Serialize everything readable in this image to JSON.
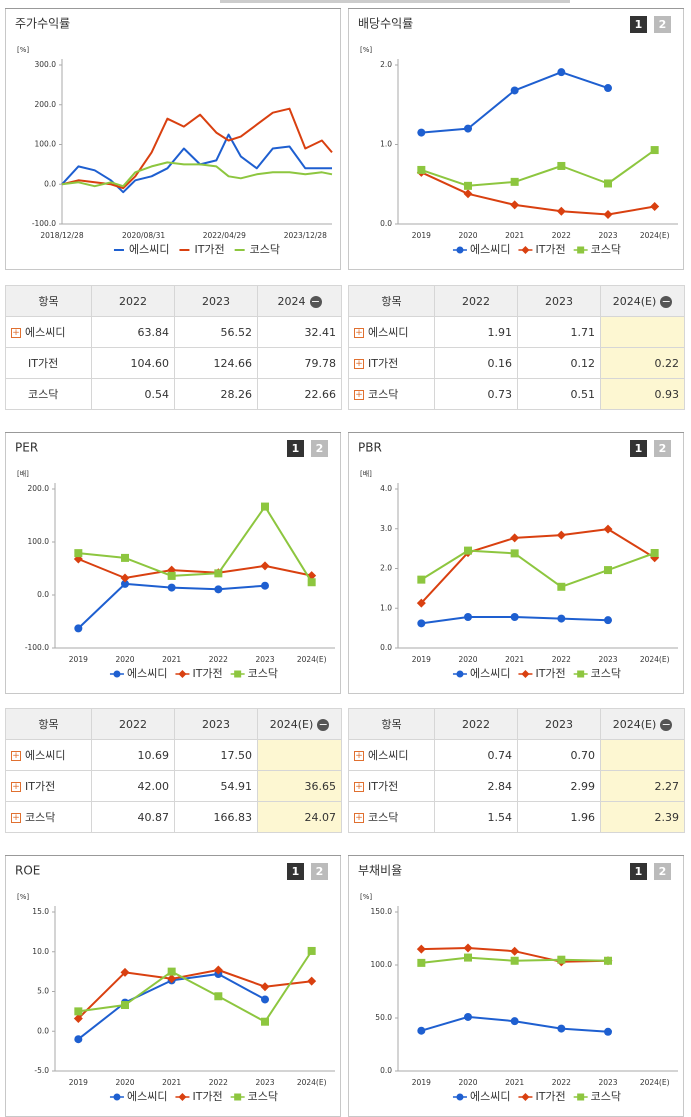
{
  "chart_data": [
    {
      "type": "line",
      "title": "주가수익률",
      "unit": "[%]",
      "x": [
        "2018/12/28",
        "2019/04/30",
        "2019/08/30",
        "2019/12/30",
        "2020/03/31",
        "2020/06/30",
        "2020/10/30",
        "2021/02/26",
        "2021/06/30",
        "2021/10/29",
        "2022/02/28",
        "2022/05/31",
        "2022/08/31",
        "2022/12/29",
        "2023/04/28",
        "2023/08/31",
        "2023/12/28",
        "2024/04/30",
        "2024/07/15"
      ],
      "xlim": [
        "2018/12/28",
        "2024/07/15"
      ],
      "xticks": [
        "2018/12/28",
        "2020/08/31",
        "2022/04/29",
        "2023/12/28"
      ],
      "ylim": [
        -100,
        300
      ],
      "yticks": [
        {
          "value": -100,
          "label": "-100.0"
        },
        {
          "value": 0,
          "label": "0.0"
        },
        {
          "value": 100,
          "label": "100.0"
        },
        {
          "value": 200,
          "label": "200.0"
        },
        {
          "value": 300,
          "label": "300.0"
        }
      ],
      "grid": false,
      "legend": "bottom",
      "series": [
        {
          "name": "에스씨디",
          "color": "#1e5fd0",
          "marker": "line",
          "values": [
            0,
            45,
            35,
            10,
            -20,
            10,
            20,
            40,
            90,
            50,
            60,
            125,
            70,
            40,
            90,
            95,
            40,
            40,
            40
          ]
        },
        {
          "name": "IT가전",
          "color": "#d94010",
          "marker": "line",
          "values": [
            0,
            10,
            5,
            0,
            -10,
            20,
            80,
            165,
            145,
            175,
            130,
            110,
            120,
            150,
            180,
            190,
            90,
            110,
            80
          ]
        },
        {
          "name": "코스닥",
          "color": "#8dc63f",
          "marker": "line",
          "values": [
            0,
            5,
            -5,
            5,
            -5,
            30,
            45,
            55,
            50,
            50,
            45,
            20,
            15,
            25,
            30,
            30,
            25,
            30,
            25
          ]
        }
      ]
    },
    {
      "type": "line",
      "title": "배당수익률",
      "unit": "[%]",
      "buttons": [
        "1",
        "2"
      ],
      "categories": [
        "2019",
        "2020",
        "2021",
        "2022",
        "2023",
        "2024(E)"
      ],
      "ylim": [
        0,
        2
      ],
      "yticks": [
        {
          "value": 0,
          "label": "0.0"
        },
        {
          "value": 1,
          "label": "1.0"
        },
        {
          "value": 2,
          "label": "2.0"
        }
      ],
      "grid": false,
      "legend": "bottom",
      "series": [
        {
          "name": "에스씨디",
          "color": "#1e5fd0",
          "marker": "circle",
          "values": [
            1.15,
            1.2,
            1.68,
            1.91,
            1.71,
            null
          ]
        },
        {
          "name": "IT가전",
          "color": "#d94010",
          "marker": "diamond",
          "values": [
            0.65,
            0.38,
            0.24,
            0.16,
            0.12,
            0.22
          ]
        },
        {
          "name": "코스닥",
          "color": "#8dc63f",
          "marker": "square",
          "values": [
            0.68,
            0.48,
            0.53,
            0.73,
            0.51,
            0.93
          ]
        }
      ]
    },
    {
      "type": "line",
      "title": "PER",
      "unit": "[배]",
      "buttons": [
        "1",
        "2"
      ],
      "categories": [
        "2019",
        "2020",
        "2021",
        "2022",
        "2023",
        "2024(E)"
      ],
      "ylim": [
        -100,
        200
      ],
      "yticks": [
        {
          "value": -100,
          "label": "-100.0"
        },
        {
          "value": 0,
          "label": "0.0"
        },
        {
          "value": 100,
          "label": "100.0"
        },
        {
          "value": 200,
          "label": "200.0"
        }
      ],
      "grid": false,
      "legend": "bottom",
      "series": [
        {
          "name": "에스씨디",
          "color": "#1e5fd0",
          "marker": "circle",
          "values": [
            -63,
            21,
            14,
            10.69,
            17.5,
            null
          ]
        },
        {
          "name": "IT가전",
          "color": "#d94010",
          "marker": "diamond",
          "values": [
            68,
            32,
            47,
            42,
            54.91,
            36.65
          ]
        },
        {
          "name": "코스닥",
          "color": "#8dc63f",
          "marker": "square",
          "values": [
            79,
            70,
            36,
            40.87,
            166.83,
            24.07
          ]
        }
      ]
    },
    {
      "type": "line",
      "title": "PBR",
      "unit": "[배]",
      "buttons": [
        "1",
        "2"
      ],
      "categories": [
        "2019",
        "2020",
        "2021",
        "2022",
        "2023",
        "2024(E)"
      ],
      "ylim": [
        0,
        4
      ],
      "yticks": [
        {
          "value": 0,
          "label": "0.0"
        },
        {
          "value": 1,
          "label": "1.0"
        },
        {
          "value": 2,
          "label": "2.0"
        },
        {
          "value": 3,
          "label": "3.0"
        },
        {
          "value": 4,
          "label": "4.0"
        }
      ],
      "grid": false,
      "legend": "bottom",
      "series": [
        {
          "name": "에스씨디",
          "color": "#1e5fd0",
          "marker": "circle",
          "values": [
            0.62,
            0.78,
            0.78,
            0.74,
            0.7,
            null
          ]
        },
        {
          "name": "IT가전",
          "color": "#d94010",
          "marker": "diamond",
          "values": [
            1.13,
            2.4,
            2.77,
            2.84,
            2.99,
            2.27
          ]
        },
        {
          "name": "코스닥",
          "color": "#8dc63f",
          "marker": "square",
          "values": [
            1.72,
            2.45,
            2.38,
            1.54,
            1.96,
            2.39
          ]
        }
      ]
    },
    {
      "type": "line",
      "title": "ROE",
      "unit": "[%]",
      "buttons": [
        "1",
        "2"
      ],
      "categories": [
        "2019",
        "2020",
        "2021",
        "2022",
        "2023",
        "2024(E)"
      ],
      "ylim": [
        -5,
        15
      ],
      "yticks": [
        {
          "value": -5,
          "label": "-5.0"
        },
        {
          "value": 0,
          "label": "0.0"
        },
        {
          "value": 5,
          "label": "5.0"
        },
        {
          "value": 10,
          "label": "10.0"
        },
        {
          "value": 15,
          "label": "15.0"
        }
      ],
      "grid": false,
      "legend": "bottom",
      "series": [
        {
          "name": "에스씨디",
          "color": "#1e5fd0",
          "marker": "circle",
          "values": [
            -1,
            3.6,
            6.4,
            7.2,
            4,
            null
          ]
        },
        {
          "name": "IT가전",
          "color": "#d94010",
          "marker": "diamond",
          "values": [
            1.6,
            7.4,
            6.6,
            7.7,
            5.6,
            6.3
          ]
        },
        {
          "name": "코스닥",
          "color": "#8dc63f",
          "marker": "square",
          "values": [
            2.5,
            3.3,
            7.5,
            4.4,
            1.2,
            10.1
          ]
        }
      ]
    },
    {
      "type": "line",
      "title": "부채비율",
      "unit": "[%]",
      "buttons": [
        "1",
        "2"
      ],
      "categories": [
        "2019",
        "2020",
        "2021",
        "2022",
        "2023",
        "2024(E)"
      ],
      "ylim": [
        0,
        150
      ],
      "yticks": [
        {
          "value": 0,
          "label": "0.0"
        },
        {
          "value": 50,
          "label": "50.0"
        },
        {
          "value": 100,
          "label": "100.0"
        },
        {
          "value": 150,
          "label": "150.0"
        }
      ],
      "grid": false,
      "legend": "bottom",
      "series": [
        {
          "name": "에스씨디",
          "color": "#1e5fd0",
          "marker": "circle",
          "values": [
            38,
            51,
            47,
            40,
            37,
            null
          ]
        },
        {
          "name": "IT가전",
          "color": "#d94010",
          "marker": "diamond",
          "values": [
            115,
            116,
            113,
            103,
            104,
            null
          ]
        },
        {
          "name": "코스닥",
          "color": "#8dc63f",
          "marker": "square",
          "values": [
            102,
            107,
            104,
            105,
            104,
            null
          ]
        }
      ]
    }
  ],
  "tables": [
    {
      "header": [
        "항목",
        "2022",
        "2023",
        "2024"
      ],
      "highlight_last": false,
      "rows": [
        {
          "name": "에스씨디",
          "expandable": true,
          "cells": [
            "63.84",
            "56.52",
            "32.41"
          ]
        },
        {
          "name": "IT가전",
          "expandable": false,
          "cells": [
            "104.60",
            "124.66",
            "79.78"
          ]
        },
        {
          "name": "코스닥",
          "expandable": false,
          "cells": [
            "0.54",
            "28.26",
            "22.66"
          ]
        }
      ]
    },
    {
      "header": [
        "항목",
        "2022",
        "2023",
        "2024(E)"
      ],
      "highlight_last": true,
      "rows": [
        {
          "name": "에스씨디",
          "expandable": true,
          "cells": [
            "1.91",
            "1.71",
            null
          ]
        },
        {
          "name": "IT가전",
          "expandable": true,
          "cells": [
            "0.16",
            "0.12",
            "0.22"
          ]
        },
        {
          "name": "코스닥",
          "expandable": true,
          "cells": [
            "0.73",
            "0.51",
            "0.93"
          ]
        }
      ]
    },
    {
      "header": [
        "항목",
        "2022",
        "2023",
        "2024(E)"
      ],
      "highlight_last": true,
      "rows": [
        {
          "name": "에스씨디",
          "expandable": true,
          "cells": [
            "10.69",
            "17.50",
            null
          ]
        },
        {
          "name": "IT가전",
          "expandable": true,
          "cells": [
            "42.00",
            "54.91",
            "36.65"
          ]
        },
        {
          "name": "코스닥",
          "expandable": true,
          "cells": [
            "40.87",
            "166.83",
            "24.07"
          ]
        }
      ]
    },
    {
      "header": [
        "항목",
        "2022",
        "2023",
        "2024(E)"
      ],
      "highlight_last": true,
      "rows": [
        {
          "name": "에스씨디",
          "expandable": true,
          "cells": [
            "0.74",
            "0.70",
            null
          ]
        },
        {
          "name": "IT가전",
          "expandable": true,
          "cells": [
            "2.84",
            "2.99",
            "2.27"
          ]
        },
        {
          "name": "코스닥",
          "expandable": true,
          "cells": [
            "1.54",
            "1.96",
            "2.39"
          ]
        }
      ]
    }
  ]
}
